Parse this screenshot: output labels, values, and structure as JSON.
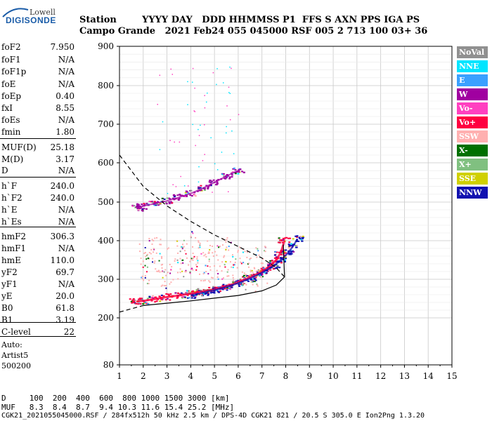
{
  "logo": {
    "line1": "Lowell",
    "line2": "DIGISONDE"
  },
  "header": {
    "line1": "Station        YYYY DAY   DDD HHMMSS P1  FFS S AXN PPS IGA PS",
    "line2": "Campo Grande   2021 Feb24 055 045000 RSF 005 2 713 100 03+ 36"
  },
  "params": [
    {
      "k": "foF2",
      "v": "7.950"
    },
    {
      "k": "foF1",
      "v": "N/A"
    },
    {
      "k": "foF1p",
      "v": "N/A"
    },
    {
      "k": "foE",
      "v": "N/A"
    },
    {
      "k": "foEp",
      "v": "0.40"
    },
    {
      "k": "fxI",
      "v": "8.55"
    },
    {
      "k": "foEs",
      "v": "N/A"
    },
    {
      "k": "fmin",
      "v": "1.80"
    },
    {
      "k": "MUF(D)",
      "v": "25.18"
    },
    {
      "k": "M(D)",
      "v": "3.17"
    },
    {
      "k": "D",
      "v": "N/A"
    },
    {
      "k": "h`F",
      "v": "240.0"
    },
    {
      "k": "h`F2",
      "v": "240.0"
    },
    {
      "k": "h`E",
      "v": "N/A"
    },
    {
      "k": "h`Es",
      "v": "N/A"
    },
    {
      "k": "hmF2",
      "v": "306.3"
    },
    {
      "k": "hmF1",
      "v": "N/A"
    },
    {
      "k": "hmE",
      "v": "110.0"
    },
    {
      "k": "yF2",
      "v": "69.7"
    },
    {
      "k": "yF1",
      "v": "N/A"
    },
    {
      "k": "yE",
      "v": "20.0"
    },
    {
      "k": "B0",
      "v": "61.8"
    },
    {
      "k": "B1",
      "v": "3.19"
    },
    {
      "k": "C-level",
      "v": "22"
    }
  ],
  "auto": {
    "line1": "Auto:",
    "line2": "Artist5",
    "line3": "500200"
  },
  "legend": [
    {
      "label": "NoVal",
      "bg": "#909090",
      "fg": "#ffffff"
    },
    {
      "label": "NNE",
      "bg": "#00e5ff",
      "fg": "#ffffff"
    },
    {
      "label": "E",
      "bg": "#3aa0ff",
      "fg": "#ffffff"
    },
    {
      "label": "W",
      "bg": "#a000a0",
      "fg": "#ffffff"
    },
    {
      "label": "Vo-",
      "bg": "#ff40c0",
      "fg": "#ffffff"
    },
    {
      "label": "Vo+",
      "bg": "#ff0040",
      "fg": "#ffffff"
    },
    {
      "label": "SSW",
      "bg": "#ffb0b0",
      "fg": "#ffffff"
    },
    {
      "label": "X-",
      "bg": "#007000",
      "fg": "#ffffff"
    },
    {
      "label": "X+",
      "bg": "#80c080",
      "fg": "#ffffff"
    },
    {
      "label": "SSE",
      "bg": "#d0d000",
      "fg": "#ffffff"
    },
    {
      "label": "NNW",
      "bg": "#1010b0",
      "fg": "#ffffff"
    }
  ],
  "footer": {
    "line1": "D     100  200  400  600  800 1000 1500 3000 [km]",
    "line2": "MUF   8.3  8.4  8.7  9.4 10.3 11.6 15.4 25.2 [MHz]",
    "line3": "CGK21_2021055045000.RSF / 284fx512h 50 kHz 2.5 km / DPS-4D CGK21 821 / 20.5 S 305.0 E Ion2Png 1.3.20"
  },
  "chart_data": {
    "type": "scatter",
    "xlim": [
      1,
      15
    ],
    "ylim": [
      80,
      900
    ],
    "xticks": [
      "1",
      "2",
      "3",
      "4",
      "5",
      "6",
      "7",
      "8",
      "9",
      "10",
      "11",
      "12",
      "13",
      "14",
      "15"
    ],
    "yticks": [
      "80",
      "200",
      "300",
      "400",
      "500",
      "600",
      "700",
      "800",
      "900"
    ],
    "grid": true,
    "series": [
      {
        "name": "O-trace",
        "color": "#ff0040",
        "x": [
          1.7,
          2.0,
          2.5,
          3.0,
          3.5,
          4.0,
          4.5,
          5.0,
          5.5,
          6.0,
          6.5,
          7.0,
          7.3,
          7.6,
          7.8,
          7.95
        ],
        "y": [
          242,
          244,
          249,
          254,
          258,
          263,
          268,
          274,
          282,
          292,
          305,
          320,
          332,
          350,
          370,
          400
        ]
      },
      {
        "name": "X-trace",
        "color": "#1010b0",
        "x": [
          4.0,
          4.5,
          5.0,
          5.5,
          6.0,
          6.5,
          7.0,
          7.5,
          7.8,
          8.1,
          8.3,
          8.5
        ],
        "y": [
          258,
          265,
          272,
          280,
          290,
          302,
          317,
          335,
          350,
          368,
          385,
          405
        ]
      },
      {
        "name": "F2 multi-hop",
        "color": "#a000a0",
        "x": [
          1.8,
          2.0,
          2.5,
          3.0,
          3.5,
          4.0,
          4.5,
          5.0,
          5.5,
          6.0
        ],
        "y": [
          485,
          490,
          496,
          503,
          512,
          522,
          535,
          550,
          566,
          580
        ]
      },
      {
        "name": "Spread F",
        "color": "#ffb0b0",
        "x": [
          2.0,
          2.5,
          3.0,
          3.5,
          4.0,
          4.5,
          5.0,
          5.5,
          6.0,
          6.5,
          7.0
        ],
        "y": [
          340,
          360,
          330,
          350,
          370,
          345,
          335,
          355,
          340,
          320,
          330
        ]
      },
      {
        "name": "Profile",
        "color": "#000000",
        "x": [
          1.0,
          2.0,
          3.0,
          4.0,
          5.0,
          6.0,
          7.0,
          7.6,
          7.95,
          7.9
        ],
        "y": [
          215,
          232,
          238,
          244,
          251,
          258,
          270,
          285,
          306,
          390
        ]
      }
    ]
  }
}
